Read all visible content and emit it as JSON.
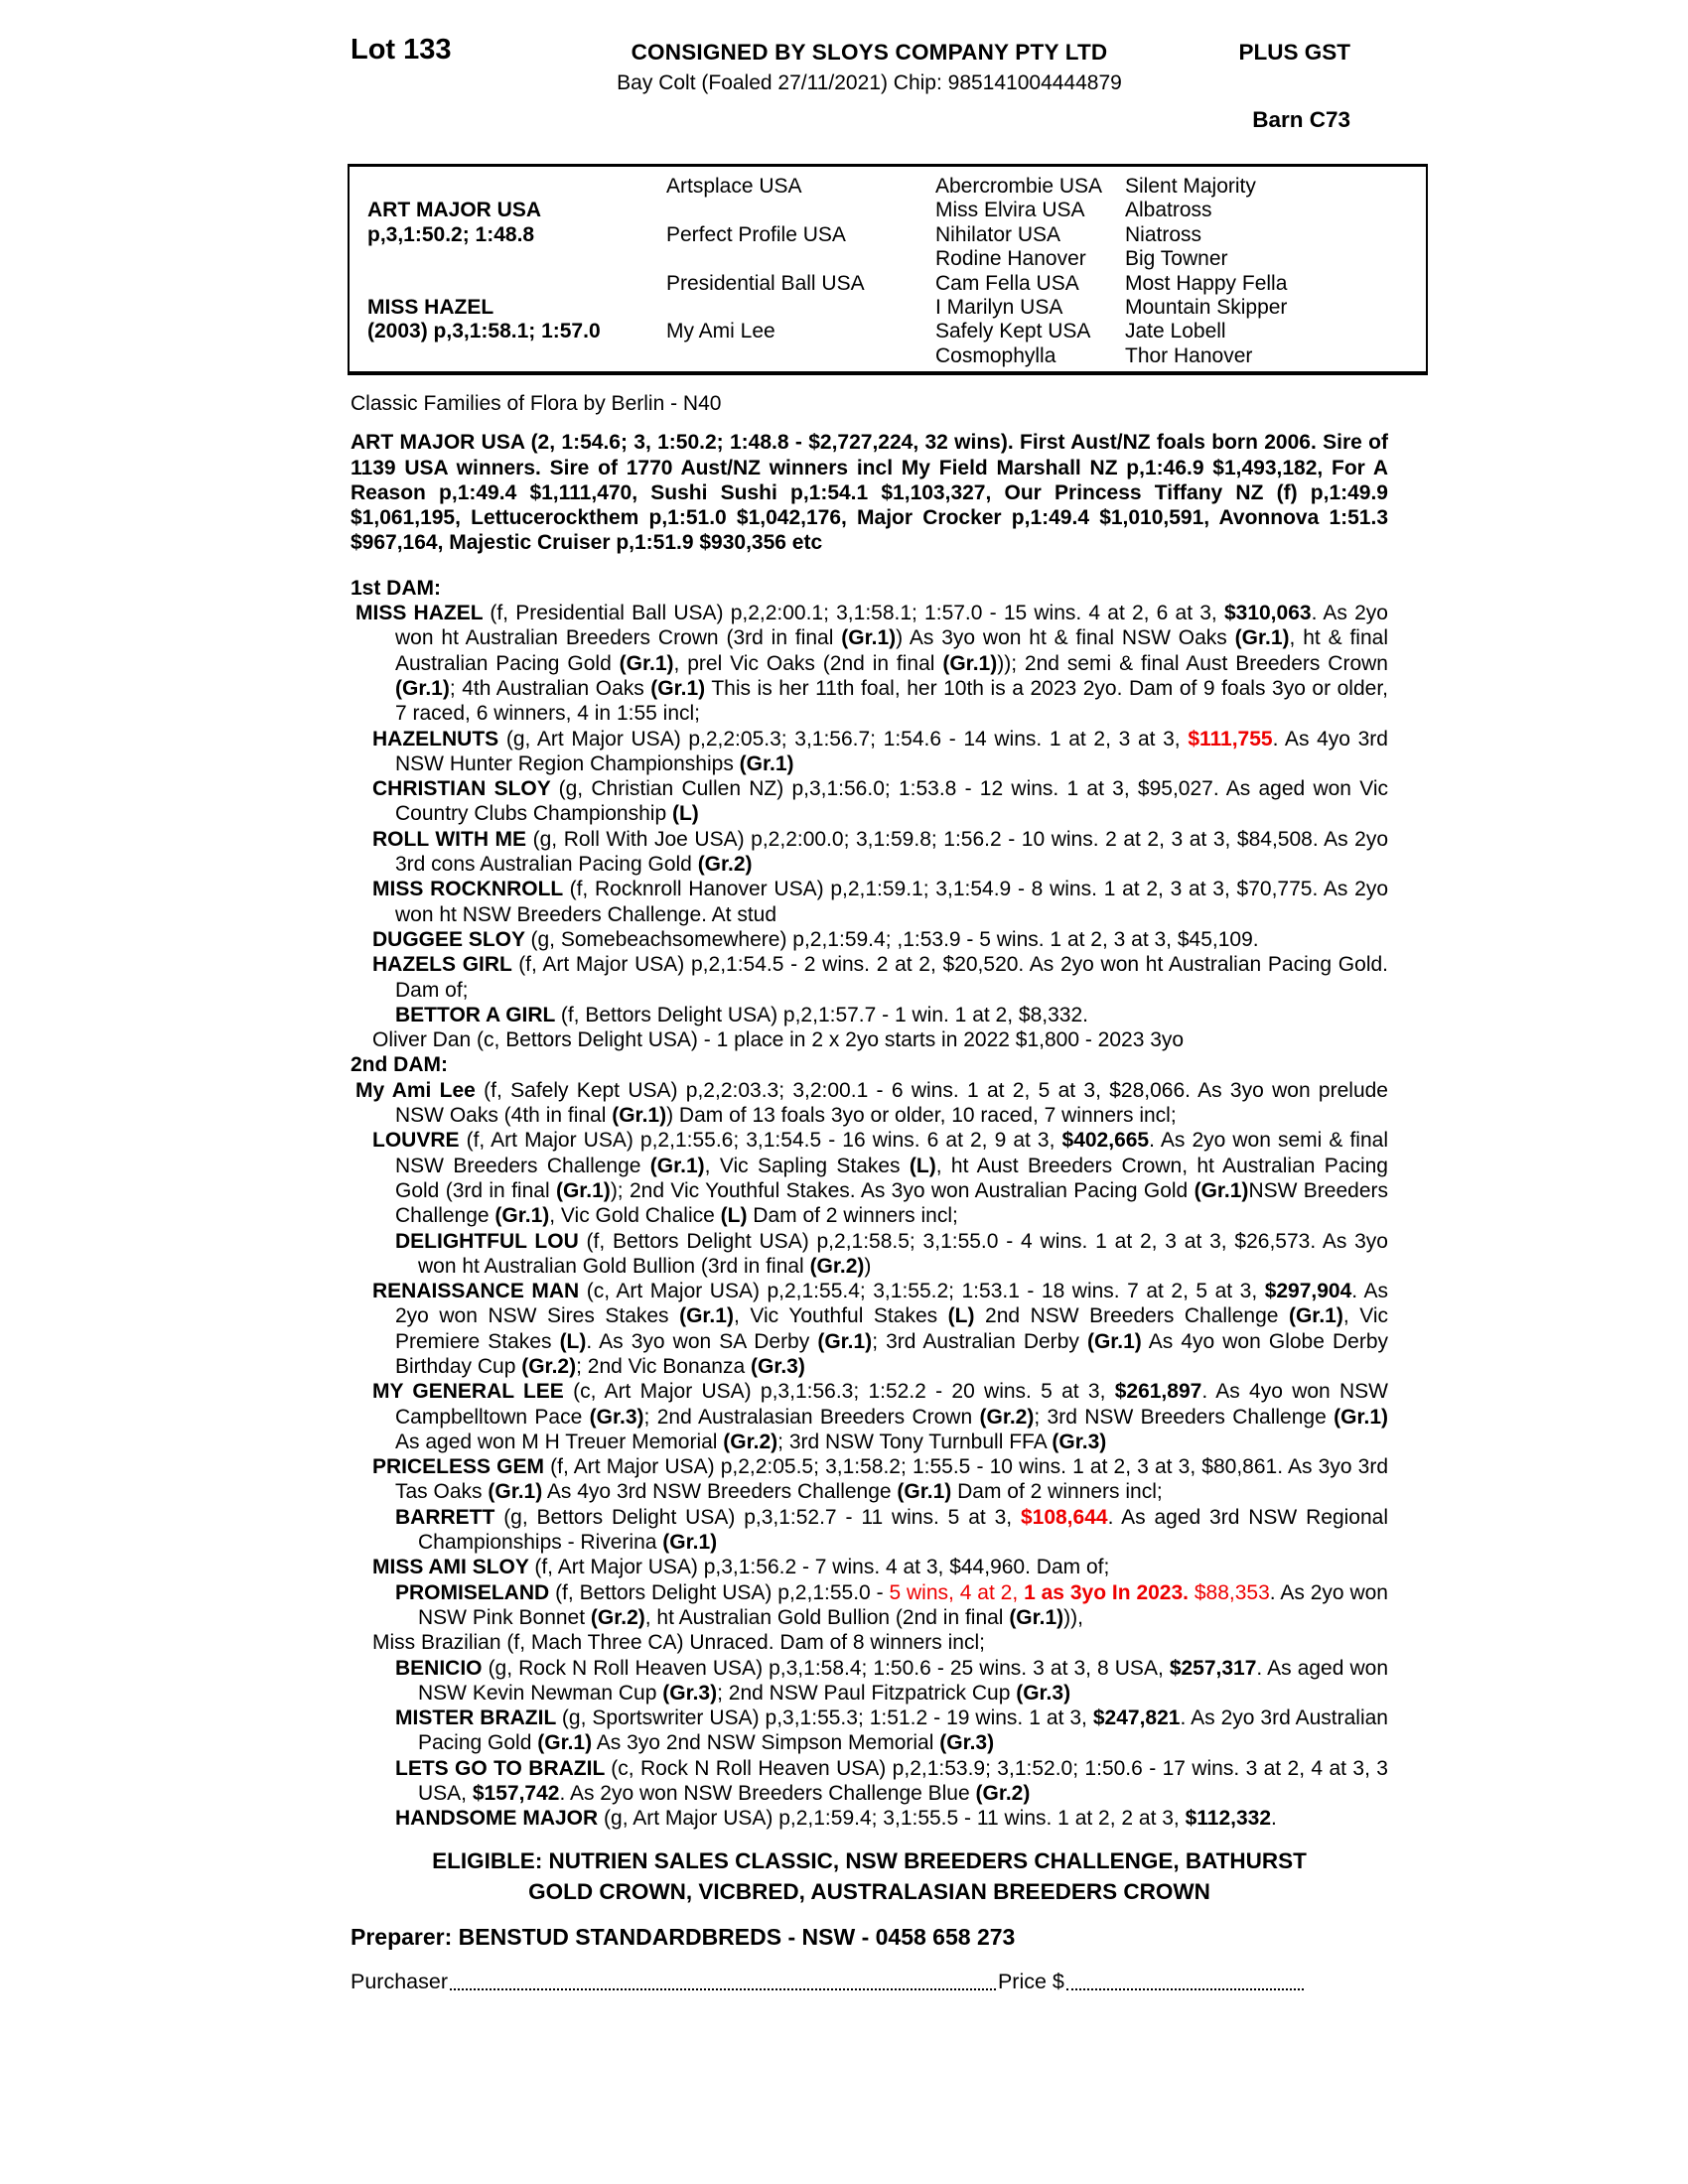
{
  "header": {
    "lot": "Lot 133",
    "consignor": "CONSIGNED BY SLOYS COMPANY PTY LTD",
    "gst": "PLUS GST",
    "description": "Bay Colt (Foaled 27/11/2021) Chip: 985141004444879",
    "barn": "Barn C73"
  },
  "pedigree_table": {
    "rows": [
      [
        "",
        "Artsplace USA",
        "Abercrombie USA",
        "Silent Majority"
      ],
      [
        "ART MAJOR USA",
        "",
        "Miss Elvira USA",
        "Albatross"
      ],
      [
        "p,3,1:50.2; 1:48.8",
        "Perfect Profile USA",
        "Nihilator USA",
        "Niatross"
      ],
      [
        "",
        "",
        "Rodine Hanover",
        "Big Towner"
      ],
      [
        "",
        "Presidential Ball USA",
        "Cam Fella USA",
        "Most Happy Fella"
      ],
      [
        "MISS HAZEL",
        "",
        "I Marilyn USA",
        "Mountain Skipper"
      ],
      [
        "(2003) p,3,1:58.1; 1:57.0",
        "My Ami Lee",
        "Safely Kept USA",
        "Jate Lobell"
      ],
      [
        "",
        "",
        "Cosmophylla",
        "Thor Hanover"
      ]
    ]
  },
  "family_note": "Classic Families of Flora by Berlin - N40",
  "sire_paragraph": "ART MAJOR USA (2, 1:54.6; 3, 1:50.2; 1:48.8 - $2,727,224, 32 wins). First Aust/NZ foals born 2006. Sire of 1139 USA winners. Sire of 1770 Aust/NZ winners incl My Field Marshall NZ p,1:46.9 $1,493,182, For A Reason p,1:49.4 $1,111,470, Sushi Sushi p,1:54.1 $1,103,327, Our Princess Tiffany NZ (f) p,1:49.9 $1,061,195, Lettucerockthem p,1:51.0 $1,042,176, Major Crocker p,1:49.4 $1,010,591, Avonnova 1:51.3 $967,164, Majestic Cruiser p,1:51.9 $930,356 etc",
  "accent_red": "#ee0000",
  "entries": [
    {
      "level": 0,
      "segs": [
        {
          "t": "1st DAM:",
          "b": true
        }
      ]
    },
    {
      "level": 1,
      "segs": [
        {
          "t": "MISS HAZEL ",
          "b": true
        },
        {
          "t": "(f, Presidential Ball USA) p,2,2:00.1; 3,1:58.1; 1:57.0 - 15 wins. 4 at 2, 6 at 3, "
        },
        {
          "t": "$310,063",
          "b": true
        },
        {
          "t": ". As 2yo won ht Australian Breeders Crown (3rd in final "
        },
        {
          "t": "(Gr.1)",
          "b": true
        },
        {
          "t": ") As 3yo won ht & final NSW Oaks "
        },
        {
          "t": "(Gr.1)",
          "b": true
        },
        {
          "t": ", ht & final Australian Pacing Gold "
        },
        {
          "t": "(Gr.1)",
          "b": true
        },
        {
          "t": ", prel Vic Oaks (2nd in final "
        },
        {
          "t": "(Gr.1)",
          "b": true
        },
        {
          "t": ")); 2nd semi & final Aust Breeders Crown "
        },
        {
          "t": "(Gr.1)",
          "b": true
        },
        {
          "t": "; 4th Australian Oaks "
        },
        {
          "t": "(Gr.1)",
          "b": true
        },
        {
          "t": " This is her 11th foal, her 10th is a 2023 2yo. Dam of 9 foals 3yo or older, 7 raced, 6 winners, 4 in 1:55 incl;"
        }
      ]
    },
    {
      "level": 2,
      "segs": [
        {
          "t": "HAZELNUTS ",
          "b": true
        },
        {
          "t": "(g, Art Major USA) p,2,2:05.3; 3,1:56.7; 1:54.6 - 14 wins. 1 at 2, 3 at 3, "
        },
        {
          "t": "$111,755",
          "b": true,
          "r": true
        },
        {
          "t": ". As 4yo 3rd NSW Hunter Region Championships "
        },
        {
          "t": "(Gr.1)",
          "b": true
        }
      ]
    },
    {
      "level": 2,
      "segs": [
        {
          "t": "CHRISTIAN SLOY ",
          "b": true
        },
        {
          "t": "(g, Christian Cullen NZ) p,3,1:56.0; 1:53.8 - 12 wins. 1 at 3, $95,027. As aged won Vic Country Clubs Championship "
        },
        {
          "t": "(L)",
          "b": true
        }
      ]
    },
    {
      "level": 2,
      "segs": [
        {
          "t": "ROLL WITH ME ",
          "b": true
        },
        {
          "t": "(g, Roll With Joe USA) p,2,2:00.0; 3,1:59.8; 1:56.2 - 10 wins. 2 at 2, 3 at 3, $84,508. As 2yo 3rd cons Australian Pacing Gold "
        },
        {
          "t": "(Gr.2)",
          "b": true
        }
      ]
    },
    {
      "level": 2,
      "segs": [
        {
          "t": "MISS ROCKNROLL ",
          "b": true
        },
        {
          "t": "(f, Rocknroll Hanover USA) p,2,1:59.1; 3,1:54.9 - 8 wins. 1 at 2, 3 at 3, $70,775. As 2yo won ht NSW Breeders Challenge. At stud"
        }
      ]
    },
    {
      "level": 2,
      "segs": [
        {
          "t": "DUGGEE SLOY ",
          "b": true
        },
        {
          "t": "(g, Somebeachsomewhere) p,2,1:59.4; ,1:53.9 - 5 wins. 1 at 2, 3 at 3, $45,109."
        }
      ]
    },
    {
      "level": 2,
      "segs": [
        {
          "t": "HAZELS GIRL ",
          "b": true
        },
        {
          "t": "(f, Art Major USA) p,2,1:54.5 - 2 wins. 2 at 2, $20,520. As 2yo won ht Australian Pacing Gold. Dam of;"
        }
      ]
    },
    {
      "level": 3,
      "segs": [
        {
          "t": "BETTOR A GIRL ",
          "b": true
        },
        {
          "t": "(f, Bettors Delight USA) p,2,1:57.7 - 1 win. 1 at 2, $8,332."
        }
      ]
    },
    {
      "level": 2,
      "segs": [
        {
          "t": "Oliver Dan (c, Bettors Delight USA) - 1 place in 2 x 2yo starts in 2022 $1,800 - 2023 3yo"
        }
      ]
    },
    {
      "level": 0,
      "segs": [
        {
          "t": "2nd DAM:",
          "b": true
        }
      ]
    },
    {
      "level": 1,
      "segs": [
        {
          "t": "My Ami Lee ",
          "b": true
        },
        {
          "t": "(f, Safely Kept USA) p,2,2:03.3; 3,2:00.1 - 6 wins. 1 at 2, 5 at 3, $28,066. As 3yo won prelude NSW Oaks (4th in final "
        },
        {
          "t": "(Gr.1)",
          "b": true
        },
        {
          "t": ") Dam of 13 foals 3yo or older, 10 raced, 7 winners incl;"
        }
      ]
    },
    {
      "level": 2,
      "segs": [
        {
          "t": "LOUVRE ",
          "b": true
        },
        {
          "t": "(f, Art Major USA) p,2,1:55.6; 3,1:54.5 - 16 wins. 6 at 2, 9 at 3, "
        },
        {
          "t": "$402,665",
          "b": true
        },
        {
          "t": ". As 2yo won semi & final NSW Breeders Challenge "
        },
        {
          "t": "(Gr.1)",
          "b": true
        },
        {
          "t": ", Vic Sapling Stakes "
        },
        {
          "t": "(L)",
          "b": true
        },
        {
          "t": ", ht Aust Breeders Crown, ht Australian Pacing Gold (3rd in final "
        },
        {
          "t": "(Gr.1)",
          "b": true
        },
        {
          "t": "); 2nd Vic Youthful Stakes. As 3yo won Australian Pacing Gold "
        },
        {
          "t": "(Gr.1)",
          "b": true
        },
        {
          "t": "NSW Breeders Challenge "
        },
        {
          "t": "(Gr.1)",
          "b": true
        },
        {
          "t": ", Vic Gold Chalice "
        },
        {
          "t": "(L)",
          "b": true
        },
        {
          "t": " Dam of 2 winners incl;"
        }
      ]
    },
    {
      "level": 3,
      "segs": [
        {
          "t": "DELIGHTFUL LOU ",
          "b": true
        },
        {
          "t": "(f, Bettors Delight USA) p,2,1:58.5; 3,1:55.0 - 4 wins. 1 at 2, 3 at 3, $26,573. As 3yo won ht Australian Gold Bullion (3rd in final "
        },
        {
          "t": "(Gr.2)",
          "b": true
        },
        {
          "t": ")"
        }
      ]
    },
    {
      "level": 2,
      "segs": [
        {
          "t": "RENAISSANCE MAN ",
          "b": true
        },
        {
          "t": "(c, Art Major USA) p,2,1:55.4; 3,1:55.2; 1:53.1 - 18 wins. 7 at 2, 5 at 3, "
        },
        {
          "t": "$297,904",
          "b": true
        },
        {
          "t": ". As 2yo won NSW Sires Stakes "
        },
        {
          "t": "(Gr.1)",
          "b": true
        },
        {
          "t": ", Vic Youthful Stakes "
        },
        {
          "t": "(L)",
          "b": true
        },
        {
          "t": " 2nd NSW Breeders Challenge "
        },
        {
          "t": "(Gr.1)",
          "b": true
        },
        {
          "t": ", Vic Premiere Stakes "
        },
        {
          "t": "(L)",
          "b": true
        },
        {
          "t": ". As 3yo won SA Derby "
        },
        {
          "t": "(Gr.1)",
          "b": true
        },
        {
          "t": "; 3rd Australian Derby "
        },
        {
          "t": "(Gr.1)",
          "b": true
        },
        {
          "t": " As 4yo won Globe Derby Birthday Cup "
        },
        {
          "t": "(Gr.2)",
          "b": true
        },
        {
          "t": "; 2nd Vic Bonanza "
        },
        {
          "t": "(Gr.3)",
          "b": true
        }
      ]
    },
    {
      "level": 2,
      "segs": [
        {
          "t": "MY GENERAL LEE ",
          "b": true
        },
        {
          "t": "(c, Art Major USA) p,3,1:56.3; 1:52.2 - 20 wins. 5 at 3, "
        },
        {
          "t": "$261,897",
          "b": true
        },
        {
          "t": ". As 4yo won NSW Campbelltown Pace "
        },
        {
          "t": "(Gr.3)",
          "b": true
        },
        {
          "t": "; 2nd Australasian Breeders Crown "
        },
        {
          "t": "(Gr.2)",
          "b": true
        },
        {
          "t": "; 3rd NSW Breeders Challenge "
        },
        {
          "t": "(Gr.1)",
          "b": true
        },
        {
          "t": " As aged won M H Treuer Memorial "
        },
        {
          "t": "(Gr.2)",
          "b": true
        },
        {
          "t": "; 3rd NSW Tony Turnbull FFA "
        },
        {
          "t": "(Gr.3)",
          "b": true
        }
      ]
    },
    {
      "level": 2,
      "segs": [
        {
          "t": "PRICELESS GEM ",
          "b": true
        },
        {
          "t": "(f, Art Major USA) p,2,2:05.5; 3,1:58.2; 1:55.5 - 10 wins. 1 at 2, 3 at 3, $80,861. As 3yo 3rd Tas Oaks "
        },
        {
          "t": "(Gr.1)",
          "b": true
        },
        {
          "t": " As 4yo 3rd NSW Breeders Challenge "
        },
        {
          "t": "(Gr.1)",
          "b": true
        },
        {
          "t": " Dam of 2 winners incl;"
        }
      ]
    },
    {
      "level": 3,
      "segs": [
        {
          "t": "BARRETT ",
          "b": true
        },
        {
          "t": "(g, Bettors Delight USA) p,3,1:52.7 - 11 wins. 5 at 3, "
        },
        {
          "t": "$108,644",
          "b": true,
          "r": true
        },
        {
          "t": ". As aged 3rd NSW Regional Championships - Riverina "
        },
        {
          "t": "(Gr.1)",
          "b": true
        }
      ]
    },
    {
      "level": 2,
      "segs": [
        {
          "t": "MISS AMI SLOY ",
          "b": true
        },
        {
          "t": "(f, Art Major USA) p,3,1:56.2 - 7 wins. 4 at 3, $44,960. Dam of;"
        }
      ]
    },
    {
      "level": 3,
      "segs": [
        {
          "t": "PROMISELAND ",
          "b": true
        },
        {
          "t": "(f, Bettors Delight USA) p,2,1:55.0 - "
        },
        {
          "t": "5 wins, 4 at 2, ",
          "r": true
        },
        {
          "t": "1 as 3yo In 2023.",
          "b": true,
          "r": true
        },
        {
          "t": " $88,353",
          "r": true
        },
        {
          "t": ". As 2yo won NSW Pink Bonnet "
        },
        {
          "t": "(Gr.2)",
          "b": true
        },
        {
          "t": ", ht Australian Gold Bullion (2nd in final "
        },
        {
          "t": "(Gr.1)",
          "b": true
        },
        {
          "t": ")),"
        }
      ]
    },
    {
      "level": 2,
      "segs": [
        {
          "t": "Miss Brazilian (f, Mach Three CA) Unraced. Dam of 8 winners incl;"
        }
      ]
    },
    {
      "level": 3,
      "segs": [
        {
          "t": "BENICIO ",
          "b": true
        },
        {
          "t": "(g, Rock N Roll Heaven USA) p,3,1:58.4; 1:50.6 - 25 wins. 3 at 3, 8 USA, "
        },
        {
          "t": "$257,317",
          "b": true
        },
        {
          "t": ". As aged won NSW Kevin Newman Cup "
        },
        {
          "t": "(Gr.3)",
          "b": true
        },
        {
          "t": "; 2nd NSW Paul Fitzpatrick Cup "
        },
        {
          "t": "(Gr.3)",
          "b": true
        }
      ]
    },
    {
      "level": 3,
      "segs": [
        {
          "t": "MISTER BRAZIL ",
          "b": true
        },
        {
          "t": "(g, Sportswriter USA) p,3,1:55.3; 1:51.2 - 19 wins. 1 at 3, "
        },
        {
          "t": "$247,821",
          "b": true
        },
        {
          "t": ". As 2yo 3rd Australian Pacing Gold "
        },
        {
          "t": "(Gr.1)",
          "b": true
        },
        {
          "t": " As 3yo 2nd NSW Simpson Memorial "
        },
        {
          "t": "(Gr.3)",
          "b": true
        }
      ]
    },
    {
      "level": 3,
      "segs": [
        {
          "t": "LETS GO TO BRAZIL ",
          "b": true
        },
        {
          "t": "(c, Rock N Roll Heaven USA) p,2,1:53.9; 3,1:52.0; 1:50.6 - 17 wins. 3 at 2, 4 at 3, 3 USA, "
        },
        {
          "t": "$157,742",
          "b": true
        },
        {
          "t": ". As 2yo won NSW Breeders Challenge Blue "
        },
        {
          "t": "(Gr.2)",
          "b": true
        }
      ]
    },
    {
      "level": 3,
      "segs": [
        {
          "t": "HANDSOME MAJOR ",
          "b": true
        },
        {
          "t": "(g, Art Major USA) p,2,1:59.4; 3,1:55.5 - 11 wins. 1 at 2, 2 at 3, "
        },
        {
          "t": "$112,332",
          "b": true
        },
        {
          "t": "."
        }
      ]
    }
  ],
  "eligible": {
    "line1": "ELIGIBLE: NUTRIEN SALES CLASSIC, NSW BREEDERS CHALLENGE, BATHURST",
    "line2": "GOLD CROWN, VICBRED, AUSTRALASIAN BREEDERS CROWN"
  },
  "preparer": "Preparer: BENSTUD STANDARDBREDS - NSW - 0458 658 273",
  "purchaser_label": "Purchaser",
  "price_label": "Price $"
}
